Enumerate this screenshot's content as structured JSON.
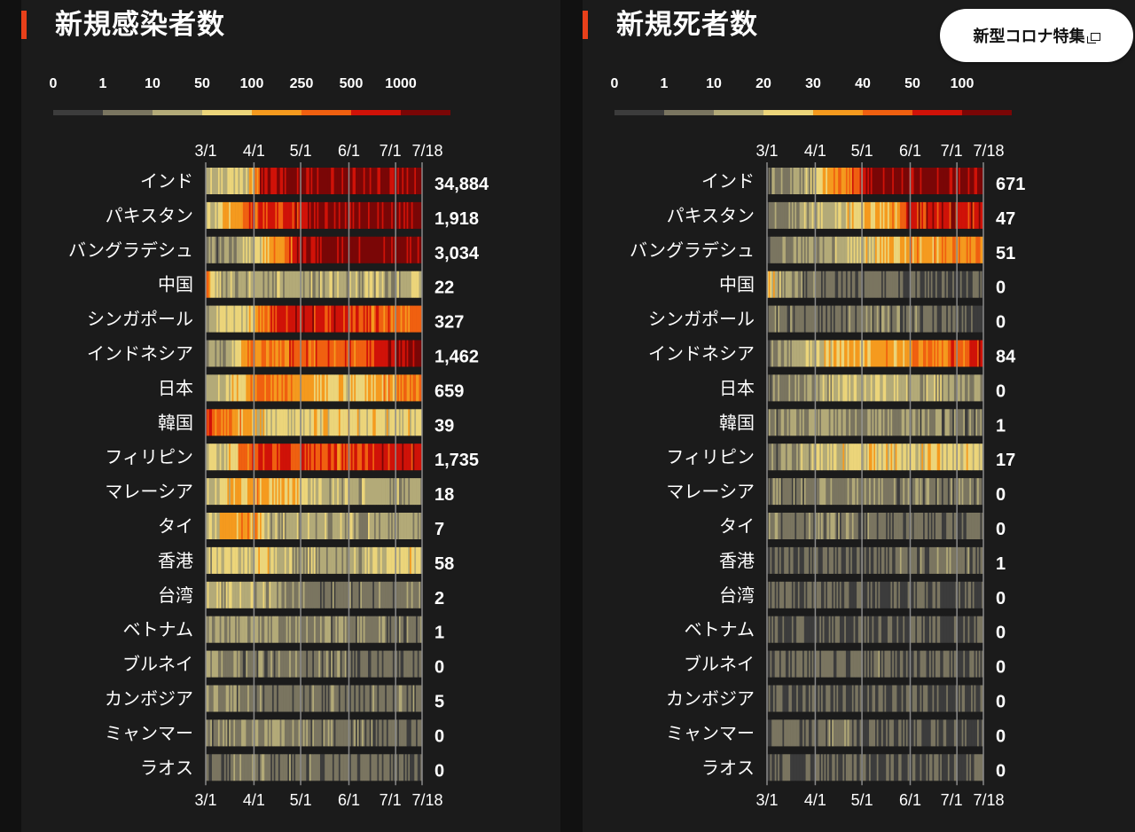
{
  "special_button": {
    "label": "新型コロナ特集"
  },
  "chart_data": [
    {
      "type": "heatmap",
      "title": "新規感染者数",
      "x_ticks": [
        "3/1",
        "4/1",
        "5/1",
        "6/1",
        "7/1",
        "7/18"
      ],
      "legend_labels": [
        "0",
        "1",
        "10",
        "50",
        "100",
        "250",
        "500",
        "1000"
      ],
      "legend_colors": [
        "#3c3c3c",
        "#7a7560",
        "#b3aa78",
        "#ecd57a",
        "#f59a1e",
        "#f06010",
        "#d01208",
        "#7a0606"
      ],
      "countries": [
        "インド",
        "パキスタン",
        "バングラデシュ",
        "中国",
        "シンガポール",
        "インドネシア",
        "日本",
        "韓国",
        "フィリピン",
        "マレーシア",
        "タイ",
        "香港",
        "台湾",
        "ベトナム",
        "ブルネイ",
        "カンボジア",
        "ミャンマー",
        "ラオス"
      ],
      "latest": [
        "34,884",
        "1,918",
        "3,034",
        "22",
        "327",
        "1,462",
        "659",
        "39",
        "1,735",
        "18",
        "7",
        "58",
        "2",
        "1",
        "0",
        "5",
        "0",
        "0"
      ],
      "profiles": [
        [
          [
            0,
            2
          ],
          [
            0.2,
            3
          ],
          [
            0.25,
            6
          ],
          [
            0.4,
            7
          ],
          [
            1,
            7
          ]
        ],
        [
          [
            0,
            2
          ],
          [
            0.1,
            4
          ],
          [
            0.2,
            5
          ],
          [
            0.45,
            6
          ],
          [
            0.5,
            7
          ],
          [
            1,
            7
          ]
        ],
        [
          [
            0,
            1
          ],
          [
            0.2,
            2
          ],
          [
            0.3,
            4
          ],
          [
            0.4,
            5
          ],
          [
            0.4,
            6
          ],
          [
            0.6,
            7
          ],
          [
            1,
            7
          ]
        ],
        [
          [
            0,
            5
          ],
          [
            0.03,
            3
          ],
          [
            0.08,
            2
          ],
          [
            1,
            2
          ]
        ],
        [
          [
            0,
            2
          ],
          [
            0.2,
            3
          ],
          [
            0.35,
            6
          ],
          [
            0.6,
            6
          ],
          [
            0.75,
            5
          ],
          [
            1,
            5
          ]
        ],
        [
          [
            0,
            1
          ],
          [
            0.15,
            3
          ],
          [
            0.2,
            4
          ],
          [
            0.4,
            5
          ],
          [
            0.7,
            5
          ],
          [
            0.8,
            6
          ],
          [
            1,
            7
          ]
        ],
        [
          [
            0,
            2
          ],
          [
            0.15,
            3
          ],
          [
            0.25,
            5
          ],
          [
            0.45,
            4
          ],
          [
            0.65,
            3
          ],
          [
            0.85,
            4
          ],
          [
            1,
            5
          ]
        ],
        [
          [
            0,
            6
          ],
          [
            0.05,
            5
          ],
          [
            0.15,
            4
          ],
          [
            0.25,
            3
          ],
          [
            1,
            3
          ]
        ],
        [
          [
            0,
            2
          ],
          [
            0.1,
            3
          ],
          [
            0.2,
            5
          ],
          [
            0.3,
            6
          ],
          [
            0.6,
            5
          ],
          [
            0.75,
            6
          ],
          [
            1,
            6
          ]
        ],
        [
          [
            0,
            2
          ],
          [
            0.1,
            3
          ],
          [
            0.2,
            4
          ],
          [
            0.45,
            3
          ],
          [
            0.6,
            2
          ],
          [
            1,
            2
          ]
        ],
        [
          [
            0,
            2
          ],
          [
            0.1,
            4
          ],
          [
            0.25,
            4
          ],
          [
            0.3,
            2
          ],
          [
            1,
            1.6
          ]
        ],
        [
          [
            0,
            2
          ],
          [
            0.25,
            3
          ],
          [
            0.4,
            2
          ],
          [
            0.7,
            2
          ],
          [
            0.9,
            3
          ],
          [
            1,
            3
          ]
        ],
        [
          [
            0,
            2
          ],
          [
            0.3,
            2
          ],
          [
            0.4,
            1
          ],
          [
            1,
            1
          ]
        ],
        [
          [
            0,
            1.6
          ],
          [
            0.4,
            1.3
          ],
          [
            1,
            1
          ]
        ],
        [
          [
            0,
            1.4
          ],
          [
            0.3,
            1
          ],
          [
            1,
            0.6
          ]
        ],
        [
          [
            0,
            1.5
          ],
          [
            0.3,
            1
          ],
          [
            1,
            0.8
          ]
        ],
        [
          [
            0,
            1
          ],
          [
            0.3,
            1.4
          ],
          [
            0.6,
            1
          ],
          [
            1,
            0.8
          ]
        ],
        [
          [
            0,
            0.6
          ],
          [
            0.2,
            1.4
          ],
          [
            0.3,
            0.8
          ],
          [
            1,
            0.6
          ]
        ]
      ]
    },
    {
      "type": "heatmap",
      "title": "新規死者数",
      "x_ticks": [
        "3/1",
        "4/1",
        "5/1",
        "6/1",
        "7/1",
        "7/18"
      ],
      "legend_labels": [
        "0",
        "1",
        "10",
        "20",
        "30",
        "40",
        "50",
        "100"
      ],
      "legend_colors": [
        "#3c3c3c",
        "#7a7560",
        "#b3aa78",
        "#ecd57a",
        "#f59a1e",
        "#f06010",
        "#d01208",
        "#7a0606"
      ],
      "countries": [
        "インド",
        "パキスタン",
        "バングラデシュ",
        "中国",
        "シンガポール",
        "インドネシア",
        "日本",
        "韓国",
        "フィリピン",
        "マレーシア",
        "タイ",
        "香港",
        "台湾",
        "ベトナム",
        "ブルネイ",
        "カンボジア",
        "ミャンマー",
        "ラオス"
      ],
      "latest": [
        "671",
        "47",
        "51",
        "0",
        "0",
        "84",
        "0",
        "1",
        "17",
        "0",
        "0",
        "1",
        "0",
        "0",
        "0",
        "0",
        "0",
        "0"
      ],
      "profiles": [
        [
          [
            0,
            1
          ],
          [
            0.2,
            2
          ],
          [
            0.3,
            4
          ],
          [
            0.45,
            6
          ],
          [
            0.5,
            7
          ],
          [
            1,
            7
          ]
        ],
        [
          [
            0,
            1
          ],
          [
            0.2,
            2
          ],
          [
            0.4,
            3
          ],
          [
            0.6,
            4
          ],
          [
            0.65,
            6
          ],
          [
            1,
            6
          ]
        ],
        [
          [
            0,
            1
          ],
          [
            0.3,
            2
          ],
          [
            0.5,
            3
          ],
          [
            0.7,
            4
          ],
          [
            1,
            4.5
          ]
        ],
        [
          [
            0,
            4
          ],
          [
            0.05,
            2
          ],
          [
            0.15,
            1
          ],
          [
            0.3,
            0.8
          ],
          [
            1,
            0.5
          ]
        ],
        [
          [
            0,
            0.8
          ],
          [
            0.5,
            1
          ],
          [
            1,
            0.6
          ]
        ],
        [
          [
            0,
            1
          ],
          [
            0.15,
            2
          ],
          [
            0.3,
            3
          ],
          [
            0.6,
            4
          ],
          [
            0.9,
            5
          ],
          [
            1,
            6
          ]
        ],
        [
          [
            0,
            1
          ],
          [
            0.3,
            2
          ],
          [
            0.5,
            2.5
          ],
          [
            0.7,
            2
          ],
          [
            1,
            1.5
          ]
        ],
        [
          [
            0,
            1
          ],
          [
            0.2,
            1.6
          ],
          [
            0.5,
            1.3
          ],
          [
            1,
            1
          ]
        ],
        [
          [
            0,
            1
          ],
          [
            0.2,
            2
          ],
          [
            0.4,
            3
          ],
          [
            0.6,
            3
          ],
          [
            1,
            3
          ]
        ],
        [
          [
            0,
            1
          ],
          [
            0.4,
            1.4
          ],
          [
            0.7,
            1
          ],
          [
            1,
            0.8
          ]
        ],
        [
          [
            0,
            1
          ],
          [
            0.3,
            1.2
          ],
          [
            0.5,
            0.8
          ],
          [
            1,
            0.5
          ]
        ],
        [
          [
            0,
            0.8
          ],
          [
            0.5,
            0.6
          ],
          [
            0.9,
            1.2
          ],
          [
            1,
            0.6
          ]
        ],
        [
          [
            0,
            0.8
          ],
          [
            0.5,
            0.6
          ],
          [
            1,
            0.4
          ]
        ],
        [
          [
            0,
            0.4
          ],
          [
            1,
            0.3
          ]
        ],
        [
          [
            0,
            0.6
          ],
          [
            0.5,
            0.8
          ],
          [
            1,
            0.4
          ]
        ],
        [
          [
            0,
            0.4
          ],
          [
            1,
            0.3
          ]
        ],
        [
          [
            0,
            0.6
          ],
          [
            0.3,
            0.9
          ],
          [
            0.6,
            0.4
          ],
          [
            1,
            0.3
          ]
        ],
        [
          [
            0,
            0.4
          ],
          [
            1,
            0.3
          ]
        ]
      ]
    }
  ]
}
